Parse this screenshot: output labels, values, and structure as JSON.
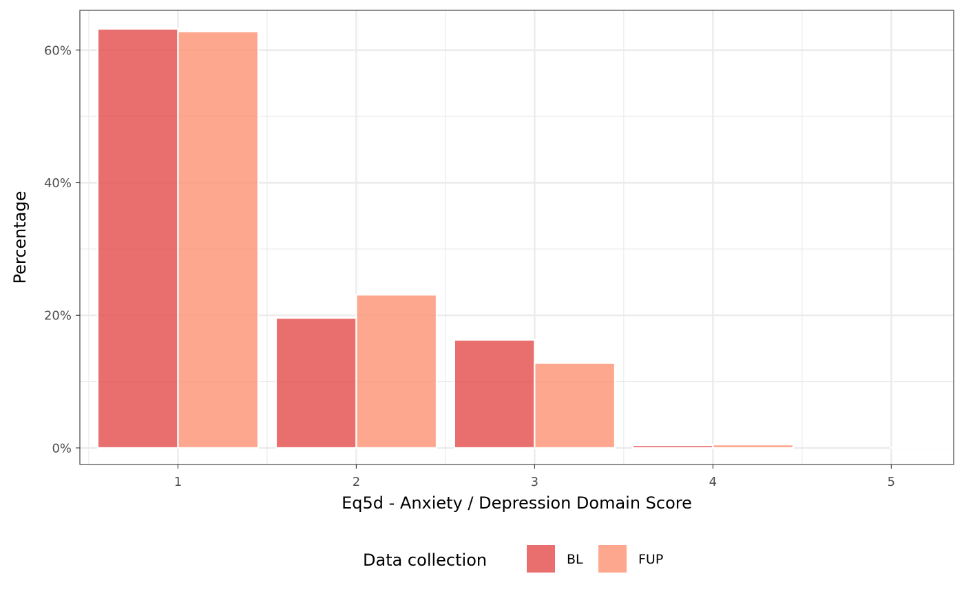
{
  "chart_data": {
    "type": "bar",
    "xlabel": "Eq5d - Anxiety / Depression Domain Score",
    "ylabel": "Percentage",
    "categories": [
      "1",
      "2",
      "3",
      "4",
      "5"
    ],
    "series": [
      {
        "name": "BL",
        "color": "#E34A4A",
        "values": [
          63.2,
          19.6,
          16.3,
          0.4,
          0.0
        ]
      },
      {
        "name": "FUP",
        "color": "#FC9272",
        "values": [
          62.8,
          23.1,
          12.8,
          0.5,
          0.1
        ]
      }
    ],
    "yticks": [
      0,
      20,
      40,
      60
    ],
    "ytick_labels": [
      "0%",
      "20%",
      "40%",
      "60%"
    ],
    "ylim": [
      -2.5,
      66
    ],
    "xlim": [
      0.45,
      5.35
    ],
    "grid": true,
    "legend": {
      "title": "Data collection",
      "position": "bottom",
      "items": [
        "BL",
        "FUP"
      ]
    },
    "bar_opacity": 0.8
  }
}
